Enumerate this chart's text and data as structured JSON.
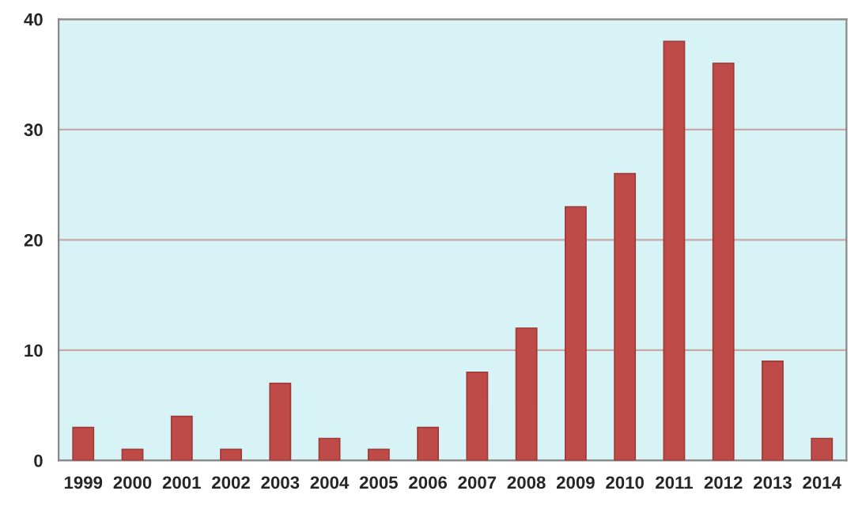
{
  "chart_data": {
    "type": "bar",
    "categories": [
      "1999",
      "2000",
      "2001",
      "2002",
      "2003",
      "2004",
      "2005",
      "2006",
      "2007",
      "2008",
      "2009",
      "2010",
      "2011",
      "2012",
      "2013",
      "2014"
    ],
    "values": [
      3,
      1,
      4,
      1,
      7,
      2,
      1,
      3,
      8,
      12,
      23,
      26,
      38,
      36,
      9,
      2
    ],
    "color": "#be4b48",
    "ylim": [
      0,
      40
    ],
    "yticks": [
      0,
      10,
      20,
      30,
      40
    ],
    "grid": "y"
  }
}
